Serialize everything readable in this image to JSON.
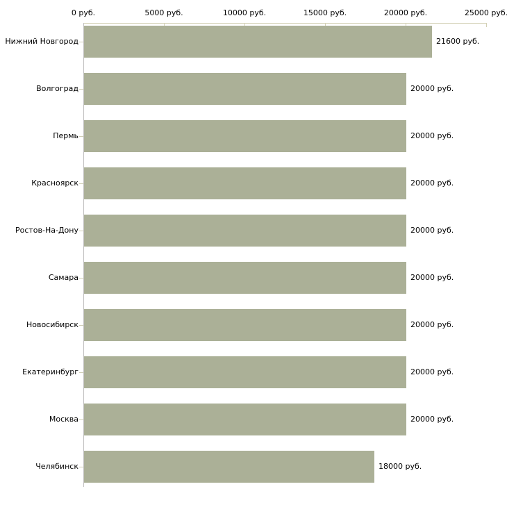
{
  "chart_data": {
    "type": "bar",
    "orientation": "horizontal",
    "title": "",
    "xlabel": "",
    "ylabel": "",
    "categories": [
      "Нижний Новгород",
      "Волгоград",
      "Пермь",
      "Красноярск",
      "Ростов-На-Дону",
      "Самара",
      "Новосибирск",
      "Екатеринбург",
      "Москва",
      "Челябинск"
    ],
    "values": [
      21600,
      20000,
      20000,
      20000,
      20000,
      20000,
      20000,
      20000,
      20000,
      18000
    ],
    "value_labels": [
      "21600 руб.",
      "20000 руб.",
      "20000 руб.",
      "20000 руб.",
      "20000 руб.",
      "20000 руб.",
      "20000 руб.",
      "20000 руб.",
      "20000 руб.",
      "18000 руб."
    ],
    "x_axis": {
      "max": 25000,
      "ticks": [
        0,
        5000,
        10000,
        15000,
        20000,
        25000
      ],
      "tick_labels": [
        "0 руб.",
        "5000 руб.",
        "10000 руб.",
        "15000 руб.",
        "20000 руб.",
        "25000 руб."
      ]
    },
    "grid": false,
    "legend": false,
    "colors": {
      "bar": "#abb097",
      "axis_horizontal": "#d3d0b5",
      "axis_vertical": "#c1c0c0",
      "category_tick": "#cfcdb4",
      "text": "#000000",
      "background": "#ffffff"
    }
  }
}
